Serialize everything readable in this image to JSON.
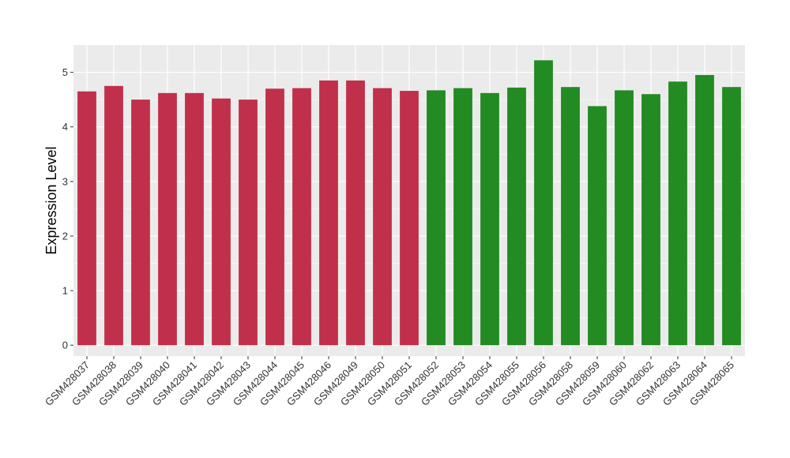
{
  "chart_data": {
    "type": "bar",
    "title": "",
    "xlabel": "",
    "ylabel": "Expression Level",
    "ylim": [
      -0.2,
      5.5
    ],
    "yticks": [
      0,
      1,
      2,
      3,
      4,
      5
    ],
    "grid": true,
    "legend": "none",
    "colors": {
      "group1": "#C1304A",
      "group2": "#228B22",
      "panel": "#EBEBEB",
      "grid": "#FFFFFF"
    },
    "categories": [
      "GSM428037",
      "GSM428038",
      "GSM428039",
      "GSM428040",
      "GSM428041",
      "GSM428042",
      "GSM428043",
      "GSM428044",
      "GSM428045",
      "GSM428046",
      "GSM428049",
      "GSM428050",
      "GSM428051",
      "GSM428052",
      "GSM428053",
      "GSM428054",
      "GSM428055",
      "GSM428056",
      "GSM428058",
      "GSM428059",
      "GSM428060",
      "GSM428062",
      "GSM428063",
      "GSM428064",
      "GSM428065"
    ],
    "values": [
      4.65,
      4.75,
      4.5,
      4.62,
      4.62,
      4.52,
      4.5,
      4.7,
      4.71,
      4.85,
      4.85,
      4.71,
      4.66,
      4.67,
      4.71,
      4.62,
      4.72,
      5.22,
      4.73,
      4.38,
      4.67,
      4.6,
      4.83,
      4.95,
      4.73
    ],
    "groups": [
      "group1",
      "group1",
      "group1",
      "group1",
      "group1",
      "group1",
      "group1",
      "group1",
      "group1",
      "group1",
      "group1",
      "group1",
      "group1",
      "group2",
      "group2",
      "group2",
      "group2",
      "group2",
      "group2",
      "group2",
      "group2",
      "group2",
      "group2",
      "group2",
      "group2"
    ]
  }
}
